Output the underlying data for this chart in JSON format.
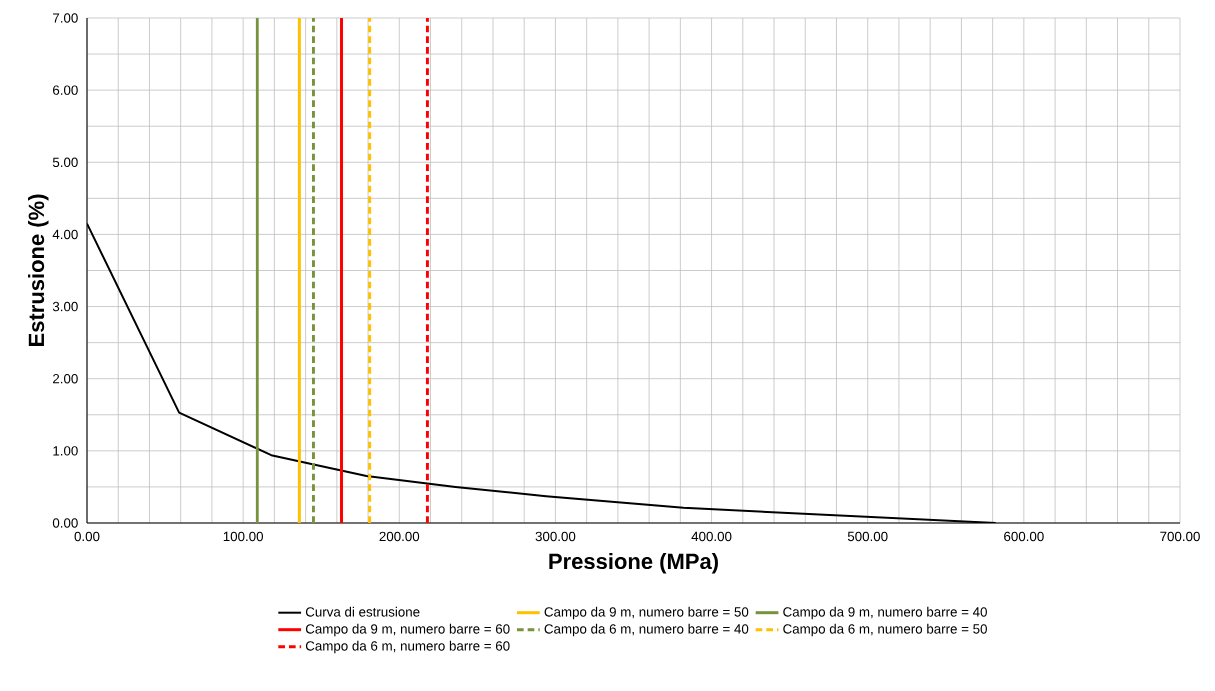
{
  "chart_data": {
    "type": "line",
    "xlabel": "Pressione (MPa)",
    "ylabel": "Estrusione (%)",
    "series": [
      {
        "name": "Curva di estrusione",
        "color": "#000000",
        "line_style": "solid",
        "x": [
          0,
          59,
          118,
          179,
          236,
          294,
          382,
          582
        ],
        "values": [
          4.15,
          1.53,
          0.94,
          0.65,
          0.5,
          0.37,
          0.21,
          0
        ]
      },
      {
        "name": "Campo da 9 m, numero barre = 50",
        "color": "#ffc000",
        "line_style": "solid",
        "x": [
          136,
          136
        ],
        "values": [
          0,
          7
        ]
      },
      {
        "name": "Campo da 9 m, numero barre = 40",
        "color": "#77933c",
        "line_style": "solid",
        "x": [
          109,
          109
        ],
        "values": [
          0,
          7
        ]
      },
      {
        "name": "Campo da 9 m, numero barre = 60",
        "color": "#ff0000",
        "line_style": "solid",
        "x": [
          163,
          163
        ],
        "values": [
          0,
          7
        ]
      },
      {
        "name": "Campo da 6 m, numero barre = 40",
        "color": "#77933c",
        "line_style": "dashed",
        "x": [
          145,
          145
        ],
        "values": [
          0,
          7
        ]
      },
      {
        "name": "Campo da 6 m, numero barre = 50",
        "color": "#ffc000",
        "line_style": "dashed",
        "x": [
          181,
          181
        ],
        "values": [
          0,
          7
        ]
      },
      {
        "name": "Campo da 6 m, numero barre = 60",
        "color": "#ff0000",
        "line_style": "dashed",
        "x": [
          218,
          218
        ],
        "values": [
          0,
          7
        ]
      }
    ],
    "xlim": [
      0,
      700
    ],
    "ylim": [
      0,
      7
    ],
    "xticks": [
      {
        "value": 0,
        "label": "0.00"
      },
      {
        "value": 20,
        "label": null
      },
      {
        "value": 40,
        "label": null
      },
      {
        "value": 60,
        "label": null
      },
      {
        "value": 80,
        "label": null
      },
      {
        "value": 100,
        "label": "100.00"
      },
      {
        "value": 120,
        "label": null
      },
      {
        "value": 140,
        "label": null
      },
      {
        "value": 160,
        "label": null
      },
      {
        "value": 180,
        "label": null
      },
      {
        "value": 200,
        "label": "200.00"
      },
      {
        "value": 220,
        "label": null
      },
      {
        "value": 240,
        "label": null
      },
      {
        "value": 260,
        "label": null
      },
      {
        "value": 280,
        "label": null
      },
      {
        "value": 300,
        "label": "300.00"
      },
      {
        "value": 320,
        "label": null
      },
      {
        "value": 340,
        "label": null
      },
      {
        "value": 360,
        "label": null
      },
      {
        "value": 380,
        "label": null
      },
      {
        "value": 400,
        "label": "400.00"
      },
      {
        "value": 420,
        "label": null
      },
      {
        "value": 440,
        "label": null
      },
      {
        "value": 460,
        "label": null
      },
      {
        "value": 480,
        "label": null
      },
      {
        "value": 500,
        "label": "500.00"
      },
      {
        "value": 520,
        "label": null
      },
      {
        "value": 540,
        "label": null
      },
      {
        "value": 560,
        "label": null
      },
      {
        "value": 580,
        "label": null
      },
      {
        "value": 600,
        "label": "600.00"
      },
      {
        "value": 620,
        "label": null
      },
      {
        "value": 640,
        "label": null
      },
      {
        "value": 660,
        "label": null
      },
      {
        "value": 680,
        "label": null
      },
      {
        "value": 700,
        "label": "700.00"
      }
    ],
    "yticks": [
      {
        "value": 0,
        "label": "0.00"
      },
      {
        "value": 0.5,
        "label": null
      },
      {
        "value": 1,
        "label": "1.00"
      },
      {
        "value": 1.5,
        "label": null
      },
      {
        "value": 2,
        "label": "2.00"
      },
      {
        "value": 2.5,
        "label": null
      },
      {
        "value": 3,
        "label": "3.00"
      },
      {
        "value": 3.5,
        "label": null
      },
      {
        "value": 4,
        "label": "4.00"
      },
      {
        "value": 4.5,
        "label": null
      },
      {
        "value": 5,
        "label": "5.00"
      },
      {
        "value": 5.5,
        "label": null
      },
      {
        "value": 6,
        "label": "6.00"
      },
      {
        "value": 6.5,
        "label": null
      },
      {
        "value": 7,
        "label": "7.00"
      }
    ],
    "grid": true,
    "legend": "bottom",
    "marker": "none"
  }
}
